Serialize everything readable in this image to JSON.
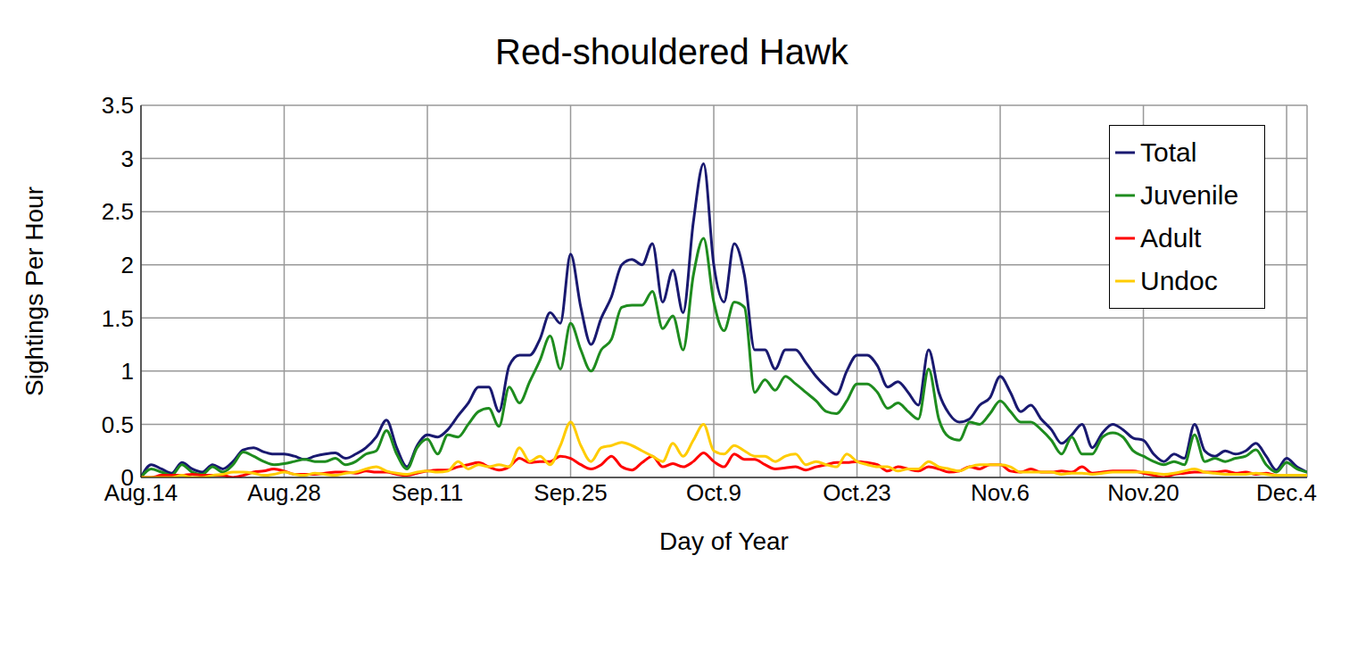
{
  "chart_data": {
    "type": "line",
    "title": "Red-shouldered Hawk",
    "x_label": "Day of Year",
    "y_label": "Sightings Per Hour",
    "x": [
      226,
      227,
      228,
      229,
      230,
      231,
      232,
      233,
      234,
      235,
      236,
      237,
      238,
      239,
      240,
      241,
      242,
      243,
      244,
      245,
      246,
      247,
      248,
      249,
      250,
      251,
      252,
      253,
      254,
      255,
      256,
      257,
      258,
      259,
      260,
      261,
      262,
      263,
      264,
      265,
      266,
      267,
      268,
      269,
      270,
      271,
      272,
      273,
      274,
      275,
      276,
      277,
      278,
      279,
      280,
      281,
      282,
      283,
      284,
      285,
      286,
      287,
      288,
      289,
      290,
      291,
      292,
      293,
      294,
      295,
      296,
      297,
      298,
      299,
      300,
      301,
      302,
      303,
      304,
      305,
      306,
      307,
      308,
      309,
      310,
      311,
      312,
      313,
      314,
      315,
      316,
      317,
      318,
      319,
      320,
      321,
      322,
      323,
      324,
      325,
      326,
      327,
      328,
      329,
      330,
      331,
      332,
      333,
      334,
      335,
      336,
      337,
      338,
      339,
      340
    ],
    "xlim": [
      226,
      340
    ],
    "xticks": [
      {
        "value": 226,
        "label": "Aug.14"
      },
      {
        "value": 240,
        "label": "Aug.28"
      },
      {
        "value": 254,
        "label": "Sep.11"
      },
      {
        "value": 268,
        "label": "Sep.25"
      },
      {
        "value": 282,
        "label": "Oct.9"
      },
      {
        "value": 296,
        "label": "Oct.23"
      },
      {
        "value": 310,
        "label": "Nov.6"
      },
      {
        "value": 324,
        "label": "Nov.20"
      },
      {
        "value": 338,
        "label": "Dec.4"
      }
    ],
    "ylim": [
      0,
      3.5
    ],
    "yticks": [
      0,
      0.5,
      1,
      1.5,
      2,
      2.5,
      3,
      3.5
    ],
    "grid": true,
    "legend": "upper right",
    "series": [
      {
        "name": "Total",
        "color": "#191970",
        "values": [
          0,
          0.12,
          0.08,
          0.04,
          0.14,
          0.08,
          0.05,
          0.12,
          0.08,
          0.15,
          0.26,
          0.28,
          0.24,
          0.22,
          0.22,
          0.2,
          0.17,
          0.2,
          0.22,
          0.23,
          0.18,
          0.22,
          0.28,
          0.38,
          0.54,
          0.28,
          0.1,
          0.3,
          0.4,
          0.38,
          0.45,
          0.58,
          0.7,
          0.85,
          0.85,
          0.62,
          1.05,
          1.15,
          1.15,
          1.3,
          1.55,
          1.45,
          2.1,
          1.6,
          1.25,
          1.5,
          1.7,
          2.0,
          2.05,
          2.0,
          2.2,
          1.65,
          1.95,
          1.55,
          2.4,
          2.95,
          2.0,
          1.65,
          2.2,
          1.9,
          1.2,
          1.2,
          1.02,
          1.2,
          1.2,
          1.08,
          0.95,
          0.85,
          0.78,
          1.0,
          1.15,
          1.15,
          1.05,
          0.85,
          0.9,
          0.8,
          0.68,
          1.2,
          0.8,
          0.6,
          0.52,
          0.55,
          0.68,
          0.75,
          0.95,
          0.8,
          0.62,
          0.68,
          0.55,
          0.45,
          0.32,
          0.4,
          0.5,
          0.28,
          0.42,
          0.5,
          0.45,
          0.37,
          0.35,
          0.22,
          0.15,
          0.22,
          0.18,
          0.5,
          0.25,
          0.2,
          0.25,
          0.22,
          0.25,
          0.32,
          0.2,
          0.07,
          0.18,
          0.1,
          0.05
        ]
      },
      {
        "name": "Juvenile",
        "color": "#1e8c1e",
        "values": [
          0,
          0.08,
          0.05,
          0.02,
          0.12,
          0.05,
          0.03,
          0.1,
          0.05,
          0.12,
          0.24,
          0.2,
          0.15,
          0.12,
          0.13,
          0.15,
          0.17,
          0.15,
          0.15,
          0.18,
          0.12,
          0.15,
          0.22,
          0.25,
          0.44,
          0.22,
          0.08,
          0.28,
          0.36,
          0.22,
          0.4,
          0.38,
          0.5,
          0.62,
          0.65,
          0.48,
          0.85,
          0.7,
          0.9,
          1.1,
          1.33,
          1.02,
          1.45,
          1.2,
          1.0,
          1.2,
          1.3,
          1.6,
          1.62,
          1.62,
          1.75,
          1.4,
          1.52,
          1.2,
          1.9,
          2.25,
          1.65,
          1.38,
          1.65,
          1.6,
          0.8,
          0.92,
          0.82,
          0.95,
          0.88,
          0.8,
          0.72,
          0.62,
          0.6,
          0.72,
          0.88,
          0.88,
          0.8,
          0.65,
          0.7,
          0.62,
          0.55,
          1.02,
          0.55,
          0.38,
          0.35,
          0.52,
          0.5,
          0.6,
          0.72,
          0.62,
          0.52,
          0.52,
          0.45,
          0.35,
          0.22,
          0.38,
          0.22,
          0.22,
          0.38,
          0.42,
          0.38,
          0.25,
          0.2,
          0.15,
          0.12,
          0.15,
          0.12,
          0.4,
          0.15,
          0.18,
          0.15,
          0.18,
          0.2,
          0.26,
          0.12,
          0.05,
          0.14,
          0.08,
          0.05
        ]
      },
      {
        "name": "Adult",
        "color": "#ff0000",
        "values": [
          0,
          0,
          0.02,
          0.02,
          0.02,
          0.03,
          0.02,
          0.02,
          0.02,
          0,
          0.02,
          0.05,
          0.06,
          0.08,
          0.06,
          0.03,
          0.03,
          0.03,
          0.04,
          0.05,
          0.05,
          0.04,
          0.06,
          0.05,
          0.05,
          0.03,
          0.02,
          0.04,
          0.06,
          0.07,
          0.07,
          0.1,
          0.12,
          0.14,
          0.1,
          0.07,
          0.1,
          0.18,
          0.14,
          0.15,
          0.15,
          0.2,
          0.18,
          0.12,
          0.08,
          0.12,
          0.2,
          0.1,
          0.07,
          0.14,
          0.2,
          0.1,
          0.13,
          0.1,
          0.15,
          0.23,
          0.15,
          0.1,
          0.22,
          0.17,
          0.17,
          0.12,
          0.08,
          0.09,
          0.1,
          0.07,
          0.1,
          0.12,
          0.14,
          0.14,
          0.15,
          0.14,
          0.12,
          0.06,
          0.1,
          0.08,
          0.06,
          0.1,
          0.08,
          0.05,
          0.06,
          0.1,
          0.08,
          0.12,
          0.12,
          0.06,
          0.05,
          0.08,
          0.05,
          0.05,
          0.06,
          0.05,
          0.1,
          0.04,
          0.05,
          0.06,
          0.06,
          0.06,
          0.04,
          0.02,
          0,
          0.03,
          0.04,
          0.05,
          0.05,
          0.05,
          0.06,
          0.04,
          0.05,
          0.03,
          0.04,
          0.02,
          0.02,
          0.02,
          0.02
        ]
      },
      {
        "name": "Undoc",
        "color": "#ffcc00",
        "values": [
          0,
          0,
          0,
          0,
          0.02,
          0,
          0,
          0.02,
          0.03,
          0.05,
          0.05,
          0.04,
          0.02,
          0.03,
          0.05,
          0.03,
          0.02,
          0.04,
          0.03,
          0.02,
          0.04,
          0.05,
          0.08,
          0.1,
          0.06,
          0.04,
          0.03,
          0.05,
          0.06,
          0.05,
          0.06,
          0.15,
          0.08,
          0.12,
          0.1,
          0.12,
          0.1,
          0.28,
          0.15,
          0.2,
          0.12,
          0.3,
          0.52,
          0.3,
          0.15,
          0.28,
          0.3,
          0.33,
          0.3,
          0.25,
          0.2,
          0.15,
          0.32,
          0.2,
          0.35,
          0.5,
          0.25,
          0.22,
          0.3,
          0.25,
          0.2,
          0.2,
          0.15,
          0.2,
          0.22,
          0.12,
          0.15,
          0.12,
          0.1,
          0.22,
          0.15,
          0.12,
          0.1,
          0.1,
          0.06,
          0.08,
          0.08,
          0.15,
          0.1,
          0.08,
          0.06,
          0.1,
          0.12,
          0.12,
          0.12,
          0.1,
          0.05,
          0.05,
          0.05,
          0.05,
          0.03,
          0.04,
          0.04,
          0.03,
          0.04,
          0.05,
          0.05,
          0.05,
          0.05,
          0.04,
          0.03,
          0.04,
          0.06,
          0.08,
          0.05,
          0.04,
          0.03,
          0.03,
          0.03,
          0.04,
          0.03,
          0.02,
          0.02,
          0.02,
          0.02
        ]
      }
    ]
  }
}
